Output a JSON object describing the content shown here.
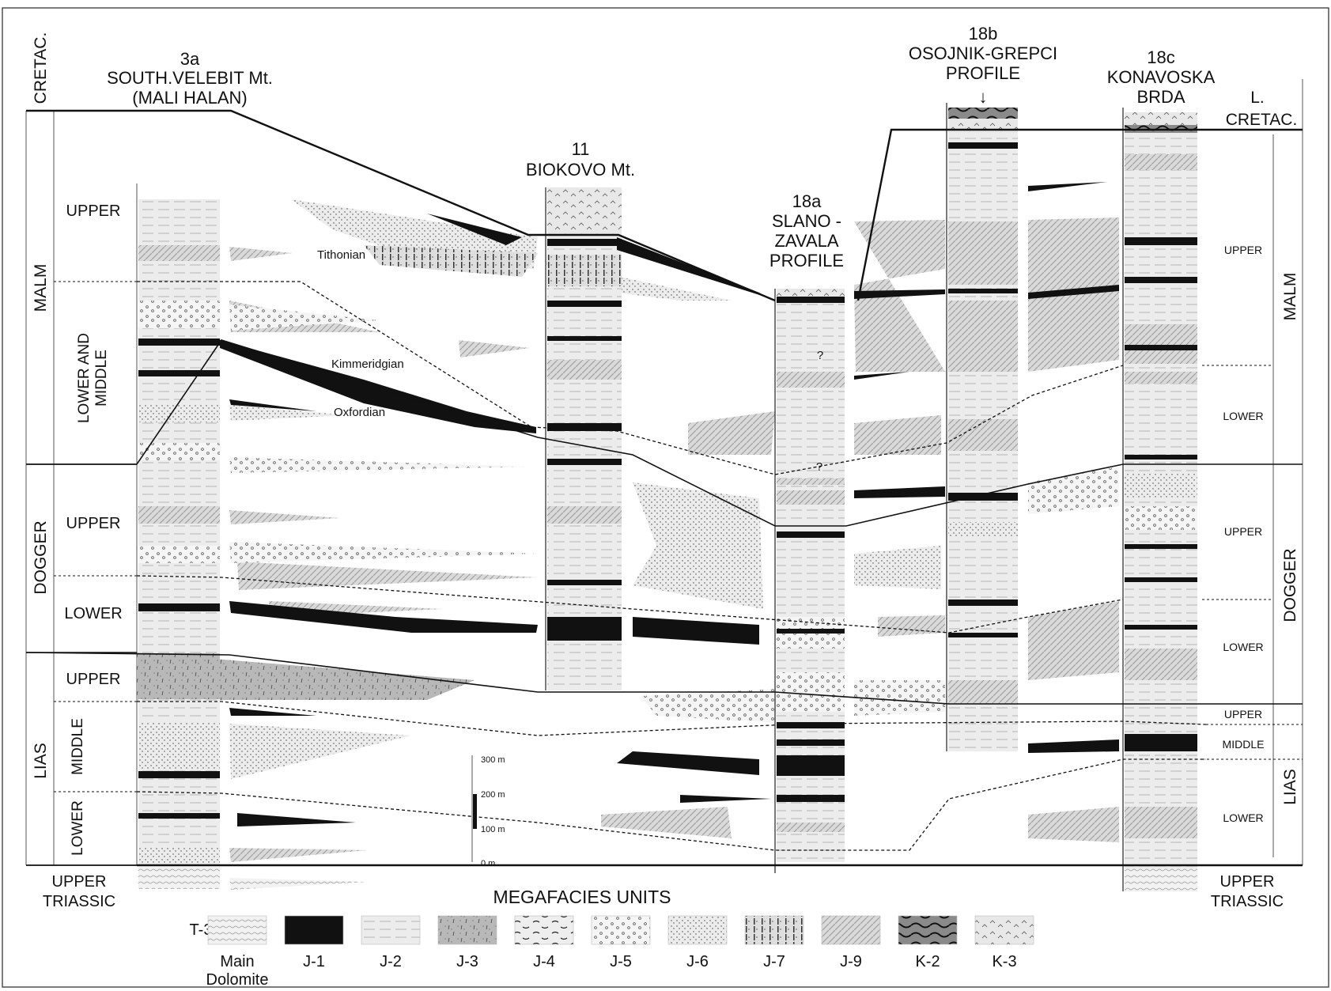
{
  "era_left": {
    "cretac": "CRETAC.",
    "malm": "MALM",
    "dogger": "DOGGER",
    "lias": "LIAS",
    "upper_triassic": [
      "UPPER",
      "TRIASSIC"
    ]
  },
  "sub_left": {
    "malm_upper": "UPPER",
    "malm_lower_middle": [
      "LOWER AND",
      "MIDDLE"
    ],
    "dogger_upper": "UPPER",
    "dogger_lower": "LOWER",
    "lias_upper": "UPPER",
    "lias_middle": "MIDDLE",
    "lias_lower": "LOWER"
  },
  "era_right": {
    "l_cretac": [
      "L.",
      "CRETAC."
    ],
    "malm": "MALM",
    "dogger": "DOGGER",
    "lias": "LIAS",
    "upper_triassic": [
      "UPPER",
      "TRIASSIC"
    ]
  },
  "sub_right": {
    "malm_upper": "UPPER",
    "malm_lower": "LOWER",
    "dogger_upper": "UPPER",
    "dogger_lower": "LOWER",
    "lias_upper": "UPPER",
    "lias_middle": "MIDDLE",
    "lias_lower": "LOWER"
  },
  "columns": {
    "c3a": [
      "3a",
      "SOUTH.VELEBIT Mt.",
      "(MALI HALAN)"
    ],
    "c11": [
      "11",
      "BIOKOVO Mt."
    ],
    "c18a": [
      "18a",
      "SLANO -",
      "ZAVALA",
      "PROFILE"
    ],
    "c18b": [
      "18b",
      "OSOJNIK-GREPCI",
      "PROFILE"
    ],
    "c18c": [
      "18c",
      "KONAVOSKA",
      "BRDA"
    ]
  },
  "stages": {
    "tithonian": "Tithonian",
    "kimmeridgian": "Kimmeridgian",
    "oxfordian": "Oxfordian"
  },
  "markers": {
    "q1": "?",
    "q2": "?",
    "arrow": "↓"
  },
  "scale": {
    "s300": "300 m",
    "s200": "200 m",
    "s100": "100 m",
    "s0": "0 m"
  },
  "legend": {
    "title": "MEGAFACIES UNITS",
    "t3": "T-3",
    "items": [
      {
        "label": "Main",
        "label2": "Dolomite",
        "pattern": "t3"
      },
      {
        "label": "J-1",
        "pattern": "j1"
      },
      {
        "label": "J-2",
        "pattern": "j2"
      },
      {
        "label": "J-3",
        "pattern": "j3"
      },
      {
        "label": "J-4",
        "pattern": "j4"
      },
      {
        "label": "J-5",
        "pattern": "j5"
      },
      {
        "label": "J-6",
        "pattern": "j6"
      },
      {
        "label": "J-7",
        "pattern": "j7"
      },
      {
        "label": "J-9",
        "pattern": "j9"
      },
      {
        "label": "K-2",
        "pattern": "k2"
      },
      {
        "label": "K-3",
        "pattern": "k3"
      }
    ]
  }
}
